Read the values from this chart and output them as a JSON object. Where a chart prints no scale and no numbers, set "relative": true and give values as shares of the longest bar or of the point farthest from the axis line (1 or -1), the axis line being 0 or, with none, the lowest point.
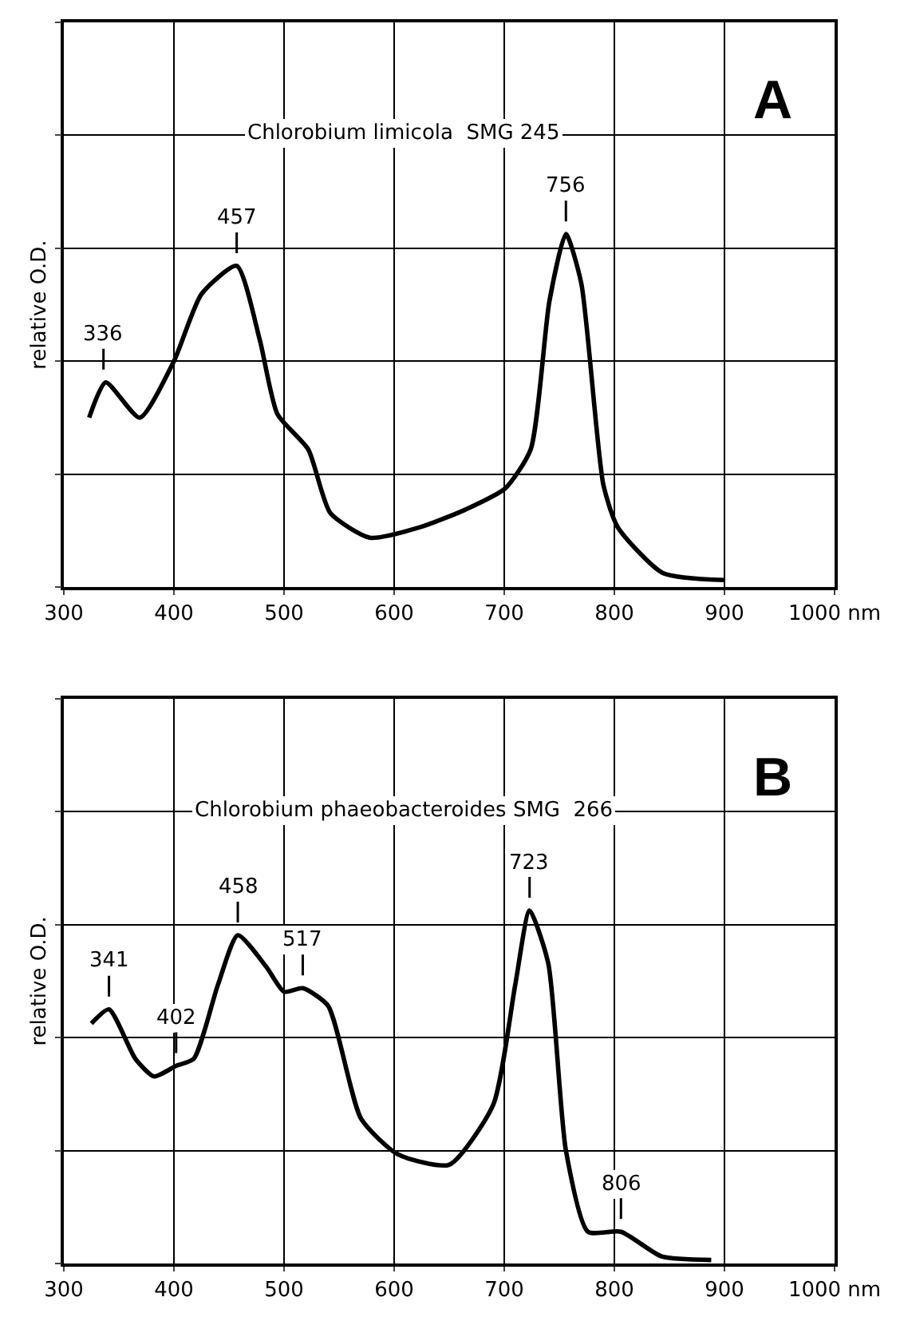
{
  "chart_data": [
    {
      "type": "line",
      "title": "Chlorobium limicola  SMG 245",
      "ylabel": "relative O.D.",
      "relative": true,
      "x": [
        323,
        338,
        369,
        400,
        425,
        457,
        478,
        494,
        522,
        542,
        578,
        624,
        665,
        701,
        724,
        741,
        756,
        770,
        790,
        803,
        844,
        900
      ],
      "series": [
        {
          "color": "#000000",
          "values": [
            0.48,
            0.58,
            0.48,
            0.64,
            0.83,
            0.91,
            0.7,
            0.49,
            0.39,
            0.21,
            0.14,
            0.17,
            0.22,
            0.28,
            0.39,
            0.81,
            1.0,
            0.86,
            0.29,
            0.17,
            0.04,
            0.02
          ]
        }
      ],
      "xlim": [
        300,
        1000
      ],
      "xticks": [
        300,
        400,
        500,
        600,
        700,
        800,
        900,
        {
          "value": 1000,
          "label": "1000 nm"
        }
      ],
      "grid": true,
      "marker": "none",
      "line_style": "solid",
      "annotations": [
        "A",
        {
          "text": "336",
          "x": 336,
          "y": 0.58
        },
        {
          "text": "457",
          "x": 457,
          "y": 0.91
        },
        {
          "text": "756",
          "x": 756,
          "y": 1.0
        }
      ]
    },
    {
      "type": "line",
      "title": "Chlorobium phaeobacteroides SMG  266",
      "ylabel": "relative O.D.",
      "relative": true,
      "x": [
        325,
        341,
        365,
        382,
        402,
        418,
        440,
        458,
        484,
        500,
        517,
        540,
        570,
        603,
        650,
        690,
        710,
        723,
        740,
        756,
        776,
        806,
        843,
        888
      ],
      "series": [
        {
          "color": "#000000",
          "values": [
            0.68,
            0.72,
            0.58,
            0.53,
            0.56,
            0.58,
            0.79,
            0.93,
            0.84,
            0.77,
            0.78,
            0.73,
            0.41,
            0.31,
            0.28,
            0.45,
            0.79,
            1.0,
            0.85,
            0.32,
            0.09,
            0.09,
            0.02,
            0.01
          ]
        }
      ],
      "xlim": [
        300,
        1000
      ],
      "xticks": [
        300,
        400,
        500,
        600,
        700,
        800,
        900,
        {
          "value": 1000,
          "label": "1000 nm"
        }
      ],
      "grid": true,
      "marker": "none",
      "line_style": "solid",
      "annotations": [
        "B",
        {
          "text": "341",
          "x": 341,
          "y": 0.72
        },
        {
          "text": "402",
          "x": 402,
          "y": 0.56
        },
        {
          "text": "458",
          "x": 458,
          "y": 0.93
        },
        {
          "text": "517",
          "x": 517,
          "y": 0.78
        },
        {
          "text": "723",
          "x": 723,
          "y": 1.0
        },
        {
          "text": "806",
          "x": 806,
          "y": 0.09
        }
      ]
    }
  ]
}
